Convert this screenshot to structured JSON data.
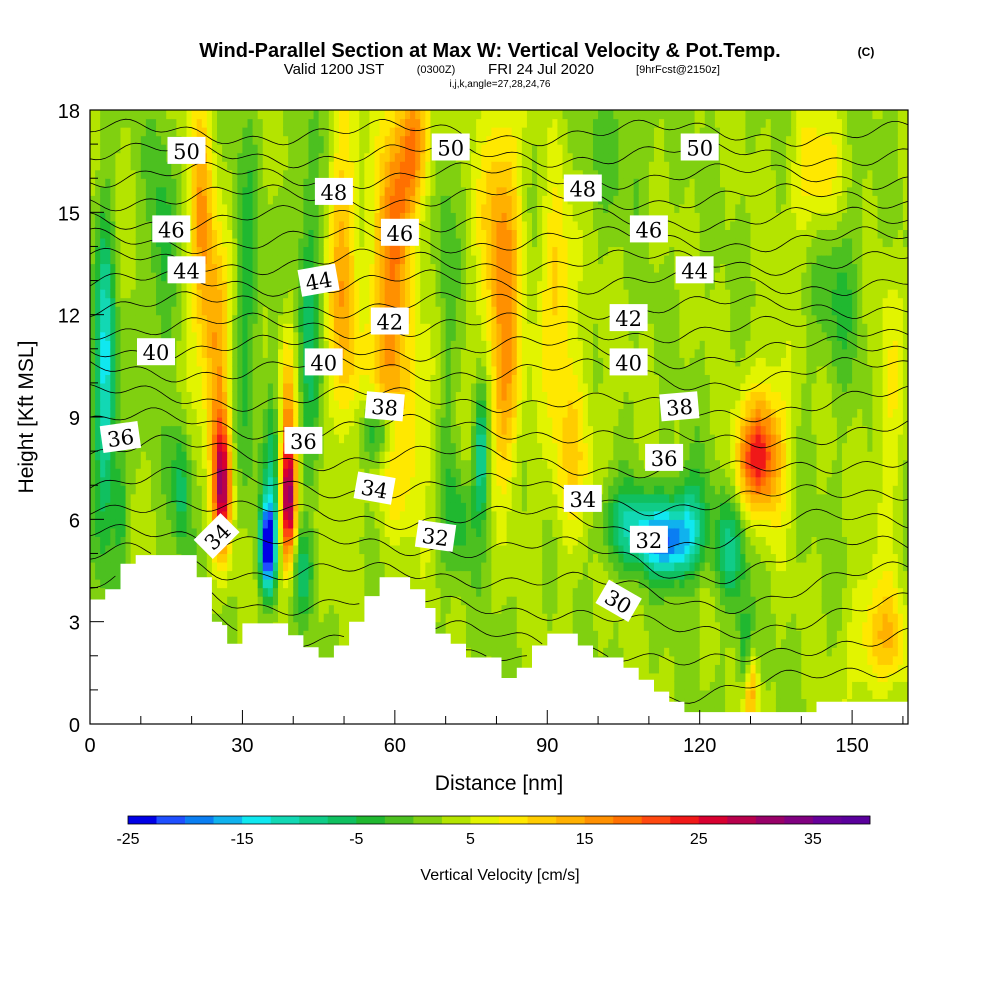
{
  "chart_data": {
    "type": "heatmap",
    "title": "Wind-Parallel Section at Max W: Vertical Velocity & Pot.Temp.",
    "title_unit": "(C)",
    "subtitle_valid": "Valid 1200 JST",
    "subtitle_utc": "(0300Z)",
    "subtitle_date": "FRI 24 Jul 2020",
    "subtitle_fcst": "[9hrFcst@2150z]",
    "subtitle_indices": "i,j,k,angle=27,28,24,76",
    "xlabel": "Distance [nm]",
    "ylabel": "Height [Kft MSL]",
    "xlim": [
      0,
      161
    ],
    "ylim": [
      0,
      18
    ],
    "x_ticks": [
      0,
      30,
      60,
      90,
      120,
      150
    ],
    "x_tick_labels": [
      "0",
      "30",
      "60",
      "90",
      "120",
      "150"
    ],
    "y_ticks": [
      0,
      3,
      6,
      9,
      12,
      15,
      18
    ],
    "y_tick_labels": [
      "0",
      "3",
      "6",
      "9",
      "12",
      "15",
      "18"
    ],
    "colorbar": {
      "title": "Vertical Velocity [cm/s]",
      "min": -25,
      "max": 40,
      "step": 2.5,
      "tick_values": [
        -25,
        -15,
        -5,
        5,
        15,
        25,
        35
      ],
      "tick_labels": [
        "-25",
        "-15",
        "-5",
        "5",
        "15",
        "25",
        "35"
      ],
      "colors": [
        "#0000e6",
        "#1f4fff",
        "#0a7ef2",
        "#10b2ee",
        "#10e8f0",
        "#12d8b4",
        "#10cc88",
        "#10c060",
        "#20b830",
        "#4cc020",
        "#80d010",
        "#b4e400",
        "#e2f400",
        "#ffe800",
        "#ffcc00",
        "#ffb000",
        "#ff9000",
        "#ff7000",
        "#ff4810",
        "#f01818",
        "#d80030",
        "#b8004c",
        "#980068",
        "#800080",
        "#660099",
        "#5a009c"
      ]
    },
    "terrain_top": [
      [
        0,
        3.65
      ],
      [
        3,
        3.65
      ],
      [
        3,
        3.95
      ],
      [
        6,
        3.95
      ],
      [
        6,
        4.7
      ],
      [
        9,
        4.7
      ],
      [
        9,
        4.95
      ],
      [
        21,
        4.95
      ],
      [
        21,
        4.3
      ],
      [
        24,
        4.3
      ],
      [
        24,
        3.0
      ],
      [
        26,
        3.0
      ],
      [
        26,
        2.9
      ],
      [
        27,
        2.9
      ],
      [
        27,
        2.35
      ],
      [
        30,
        2.35
      ],
      [
        30,
        2.95
      ],
      [
        39,
        2.95
      ],
      [
        39,
        2.6
      ],
      [
        42,
        2.6
      ],
      [
        42,
        2.25
      ],
      [
        45,
        2.25
      ],
      [
        45,
        1.95
      ],
      [
        48,
        1.95
      ],
      [
        48,
        2.3
      ],
      [
        51,
        2.3
      ],
      [
        51,
        3.0
      ],
      [
        54,
        3.0
      ],
      [
        54,
        3.75
      ],
      [
        57,
        3.75
      ],
      [
        57,
        4.3
      ],
      [
        63,
        4.3
      ],
      [
        63,
        3.95
      ],
      [
        66,
        3.95
      ],
      [
        66,
        3.4
      ],
      [
        68,
        3.4
      ],
      [
        68,
        2.65
      ],
      [
        71,
        2.65
      ],
      [
        71,
        2.35
      ],
      [
        74,
        2.35
      ],
      [
        74,
        1.95
      ],
      [
        81,
        1.95
      ],
      [
        81,
        1.35
      ],
      [
        84,
        1.35
      ],
      [
        84,
        1.65
      ],
      [
        87,
        1.65
      ],
      [
        87,
        2.3
      ],
      [
        90,
        2.3
      ],
      [
        90,
        2.65
      ],
      [
        96,
        2.65
      ],
      [
        96,
        2.3
      ],
      [
        99,
        2.3
      ],
      [
        99,
        1.95
      ],
      [
        105,
        1.95
      ],
      [
        105,
        1.65
      ],
      [
        108,
        1.65
      ],
      [
        108,
        1.3
      ],
      [
        111,
        1.3
      ],
      [
        111,
        0.95
      ],
      [
        114,
        0.95
      ],
      [
        114,
        0.65
      ],
      [
        117,
        0.65
      ],
      [
        117,
        0.35
      ],
      [
        143,
        0.35
      ],
      [
        143,
        0.65
      ],
      [
        149,
        0.65
      ],
      [
        149,
        0.65
      ],
      [
        161,
        0.65
      ]
    ],
    "vertical_velocity_features": [
      {
        "x": 3,
        "y": 10,
        "sx": 2.0,
        "sy": 4.5,
        "w": -16
      },
      {
        "x": 6,
        "y": 6.5,
        "sx": 1.5,
        "sy": 2.0,
        "w": -6
      },
      {
        "x": 14,
        "y": 14,
        "sx": 2.5,
        "sy": 4.0,
        "w": -6
      },
      {
        "x": 18,
        "y": 7,
        "sx": 1.8,
        "sy": 2.0,
        "w": -9
      },
      {
        "x": 22,
        "y": 14.5,
        "sx": 2.5,
        "sy": 4.0,
        "w": 12
      },
      {
        "x": 26,
        "y": 7.0,
        "sx": 1.8,
        "sy": 2.0,
        "w": 26
      },
      {
        "x": 25,
        "y": 11,
        "sx": 2.5,
        "sy": 3.0,
        "w": 12
      },
      {
        "x": 31,
        "y": 12,
        "sx": 2.5,
        "sy": 5.0,
        "w": -6
      },
      {
        "x": 35,
        "y": 5.2,
        "sx": 1.5,
        "sy": 1.3,
        "w": -28
      },
      {
        "x": 36,
        "y": 7.5,
        "sx": 1.8,
        "sy": 2.5,
        "w": -9
      },
      {
        "x": 39,
        "y": 6.5,
        "sx": 1.5,
        "sy": 1.8,
        "w": 28
      },
      {
        "x": 39,
        "y": 9.5,
        "sx": 2.0,
        "sy": 2.5,
        "w": 10
      },
      {
        "x": 43,
        "y": 12,
        "sx": 2.5,
        "sy": 5.0,
        "w": -8
      },
      {
        "x": 42,
        "y": 4.5,
        "sx": 2.0,
        "sy": 1.2,
        "w": -8
      },
      {
        "x": 50,
        "y": 13,
        "sx": 3.0,
        "sy": 5.0,
        "w": 12
      },
      {
        "x": 58,
        "y": 11,
        "sx": 3.0,
        "sy": 4.0,
        "w": 11
      },
      {
        "x": 60,
        "y": 15,
        "sx": 3.0,
        "sy": 3.5,
        "w": 12
      },
      {
        "x": 63,
        "y": 9,
        "sx": 4.0,
        "sy": 3.0,
        "w": 8
      },
      {
        "x": 64,
        "y": 17,
        "sx": 3.0,
        "sy": 2.0,
        "w": 15
      },
      {
        "x": 57,
        "y": 8.6,
        "sx": 4.0,
        "sy": 1.0,
        "w": -12
      },
      {
        "x": 70,
        "y": 12,
        "sx": 2.0,
        "sy": 6.0,
        "w": -4
      },
      {
        "x": 77,
        "y": 8.0,
        "sx": 1.5,
        "sy": 2.0,
        "w": -14
      },
      {
        "x": 73,
        "y": 6.0,
        "sx": 3.0,
        "sy": 1.5,
        "w": -6
      },
      {
        "x": 81,
        "y": 14.0,
        "sx": 4.0,
        "sy": 4.5,
        "w": 13
      },
      {
        "x": 82,
        "y": 9.5,
        "sx": 3.0,
        "sy": 2.5,
        "w": 8
      },
      {
        "x": 92,
        "y": 13,
        "sx": 3.0,
        "sy": 3.0,
        "w": 9
      },
      {
        "x": 95,
        "y": 8,
        "sx": 5.0,
        "sy": 3.0,
        "w": 7
      },
      {
        "x": 104,
        "y": 17,
        "sx": 8.0,
        "sy": 2.0,
        "w": -3
      },
      {
        "x": 107,
        "y": 5.8,
        "sx": 7.0,
        "sy": 1.2,
        "w": -12
      },
      {
        "x": 114,
        "y": 5.3,
        "sx": 5.0,
        "sy": 1.0,
        "w": -16
      },
      {
        "x": 118,
        "y": 6.0,
        "sx": 4.0,
        "sy": 1.5,
        "w": -10
      },
      {
        "x": 126,
        "y": 5.0,
        "sx": 3.0,
        "sy": 1.5,
        "w": -10
      },
      {
        "x": 129,
        "y": 2.0,
        "sx": 1.5,
        "sy": 1.5,
        "w": -10
      },
      {
        "x": 130,
        "y": 1.0,
        "sx": 1.5,
        "sy": 1.2,
        "w": 14
      },
      {
        "x": 131,
        "y": 7.8,
        "sx": 4.0,
        "sy": 1.5,
        "w": 16
      },
      {
        "x": 134,
        "y": 8.5,
        "sx": 4.0,
        "sy": 2.5,
        "w": 8
      },
      {
        "x": 143,
        "y": 16,
        "sx": 5.0,
        "sy": 2.0,
        "w": 8
      },
      {
        "x": 147,
        "y": 13,
        "sx": 5.0,
        "sy": 3.0,
        "w": -5
      },
      {
        "x": 157,
        "y": 2.5,
        "sx": 4.0,
        "sy": 1.5,
        "w": 9
      },
      {
        "x": 152,
        "y": 2.5,
        "sx": 3.0,
        "sy": 2.0,
        "w": 5
      },
      {
        "x": 157,
        "y": 9,
        "sx": 3.0,
        "sy": 4.0,
        "w": 5
      }
    ],
    "theta_levels": [
      30,
      31,
      32,
      33,
      34,
      35,
      36,
      37,
      38,
      39,
      40,
      41,
      42,
      43,
      44,
      45,
      46,
      47,
      48,
      49,
      50,
      51
    ],
    "theta_labels": [
      {
        "text": "50",
        "x": 19,
        "y": 16.8,
        "rot": 0
      },
      {
        "text": "50",
        "x": 71,
        "y": 16.9,
        "rot": 0
      },
      {
        "text": "50",
        "x": 120,
        "y": 16.9,
        "rot": 0
      },
      {
        "text": "48",
        "x": 48,
        "y": 15.6,
        "rot": 0
      },
      {
        "text": "48",
        "x": 97,
        "y": 15.7,
        "rot": 0
      },
      {
        "text": "46",
        "x": 16,
        "y": 14.5,
        "rot": 0
      },
      {
        "text": "46",
        "x": 61,
        "y": 14.4,
        "rot": 0
      },
      {
        "text": "46",
        "x": 110,
        "y": 14.5,
        "rot": 0
      },
      {
        "text": "44",
        "x": 19,
        "y": 13.3,
        "rot": 0
      },
      {
        "text": "44",
        "x": 45,
        "y": 13.0,
        "rot": -10
      },
      {
        "text": "44",
        "x": 119,
        "y": 13.3,
        "rot": 0
      },
      {
        "text": "42",
        "x": 59,
        "y": 11.8,
        "rot": 0
      },
      {
        "text": "42",
        "x": 106,
        "y": 11.9,
        "rot": 0
      },
      {
        "text": "40",
        "x": 13,
        "y": 10.9,
        "rot": 0
      },
      {
        "text": "40",
        "x": 46,
        "y": 10.6,
        "rot": 0
      },
      {
        "text": "40",
        "x": 106,
        "y": 10.6,
        "rot": 0
      },
      {
        "text": "38",
        "x": 58,
        "y": 9.3,
        "rot": 5
      },
      {
        "text": "38",
        "x": 116,
        "y": 9.3,
        "rot": -5
      },
      {
        "text": "36",
        "x": 6,
        "y": 8.4,
        "rot": -8
      },
      {
        "text": "36",
        "x": 42,
        "y": 8.3,
        "rot": 0
      },
      {
        "text": "36",
        "x": 113,
        "y": 7.8,
        "rot": 0
      },
      {
        "text": "34",
        "x": 25,
        "y": 5.5,
        "rot": -45
      },
      {
        "text": "34",
        "x": 56,
        "y": 6.9,
        "rot": 10
      },
      {
        "text": "34",
        "x": 97,
        "y": 6.6,
        "rot": 0
      },
      {
        "text": "32",
        "x": 68,
        "y": 5.5,
        "rot": 8
      },
      {
        "text": "32",
        "x": 110,
        "y": 5.4,
        "rot": 0
      },
      {
        "text": "30",
        "x": 104,
        "y": 3.6,
        "rot": 30
      }
    ]
  }
}
